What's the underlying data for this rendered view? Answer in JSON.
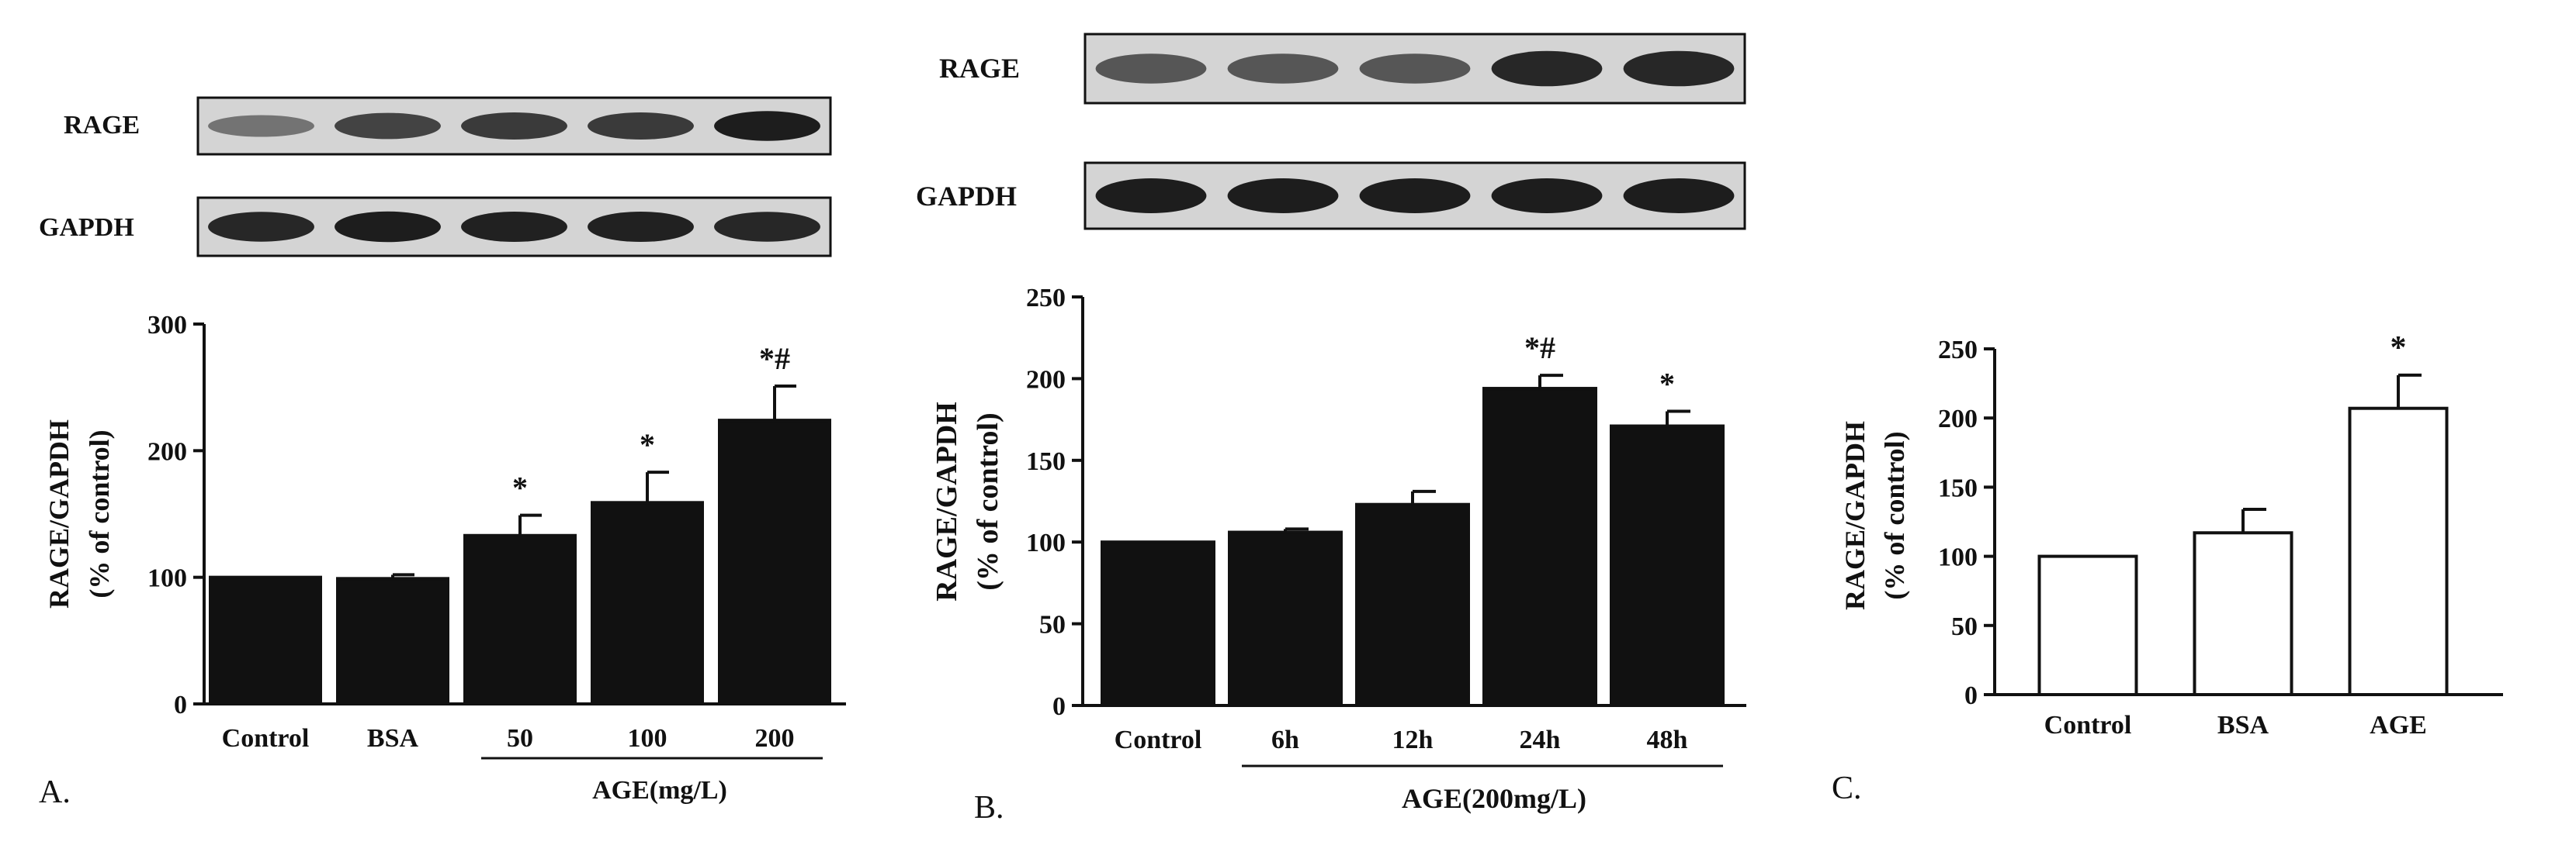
{
  "figure": {
    "background": "#ffffff",
    "bar_fill_dark": "#111111",
    "bar_fill_light": "#ffffff"
  },
  "panels": [
    {
      "id": "A",
      "panel_label": "A.",
      "blot": {
        "rows": [
          "RAGE",
          "GAPDH"
        ],
        "lanes": 5,
        "rage_intensity": [
          0.45,
          0.7,
          0.75,
          0.75,
          0.9
        ],
        "gapdh_intensity": [
          0.85,
          0.9,
          0.88,
          0.88,
          0.85
        ]
      },
      "group_label": "AGE(mg/L)",
      "group_span": [
        2,
        4
      ]
    },
    {
      "id": "B",
      "panel_label": "B.",
      "blot": {
        "rows": [
          "RAGE",
          "GAPDH"
        ],
        "lanes": 5,
        "rage_intensity": [
          0.6,
          0.6,
          0.6,
          0.85,
          0.85
        ],
        "gapdh_intensity": [
          0.9,
          0.9,
          0.9,
          0.9,
          0.9
        ]
      },
      "group_label": "AGE(200mg/L)",
      "group_span": [
        1,
        4
      ]
    },
    {
      "id": "C",
      "panel_label": "C.",
      "blot": null,
      "group_label": "",
      "group_span": null
    }
  ],
  "chart_data": [
    {
      "type": "bar",
      "title": "",
      "xlabel": "",
      "ylabel": "RAGE/GAPDH",
      "ylabel2": "(% of control)",
      "categories": [
        "Control",
        "BSA",
        "50",
        "100",
        "200"
      ],
      "values": [
        100,
        99,
        133,
        159,
        224
      ],
      "errors": [
        0,
        3,
        16,
        24,
        27
      ],
      "annotations": [
        "",
        "",
        "*",
        "*",
        "*#"
      ],
      "ylim": [
        0,
        300
      ],
      "yticks": [
        "0",
        "100",
        "200",
        "300"
      ],
      "bar_color": "#111111",
      "grid": false
    },
    {
      "type": "bar",
      "title": "",
      "xlabel": "",
      "ylabel": "RAGE/GAPDH",
      "ylabel2": "(% of control)",
      "categories": [
        "Control",
        "6h",
        "12h",
        "24h",
        "48h"
      ],
      "values": [
        100,
        106,
        123,
        194,
        171
      ],
      "errors": [
        0,
        2,
        8,
        8,
        9
      ],
      "annotations": [
        "",
        "",
        "",
        "*#",
        "*"
      ],
      "ylim": [
        0,
        250
      ],
      "yticks": [
        "0",
        "50",
        "100",
        "150",
        "200",
        "250"
      ],
      "bar_color": "#111111",
      "grid": false
    },
    {
      "type": "bar",
      "title": "",
      "xlabel": "",
      "ylabel": "RAGE/GAPDH",
      "ylabel2": "(% of control)",
      "categories": [
        "Control",
        "BSA",
        "AGE"
      ],
      "values": [
        100,
        117,
        207
      ],
      "errors": [
        0,
        17,
        24
      ],
      "annotations": [
        "",
        "",
        "*"
      ],
      "ylim": [
        0,
        250
      ],
      "yticks": [
        "0",
        "50",
        "100",
        "150",
        "200",
        "250"
      ],
      "bar_color": "#ffffff",
      "grid": false
    }
  ]
}
